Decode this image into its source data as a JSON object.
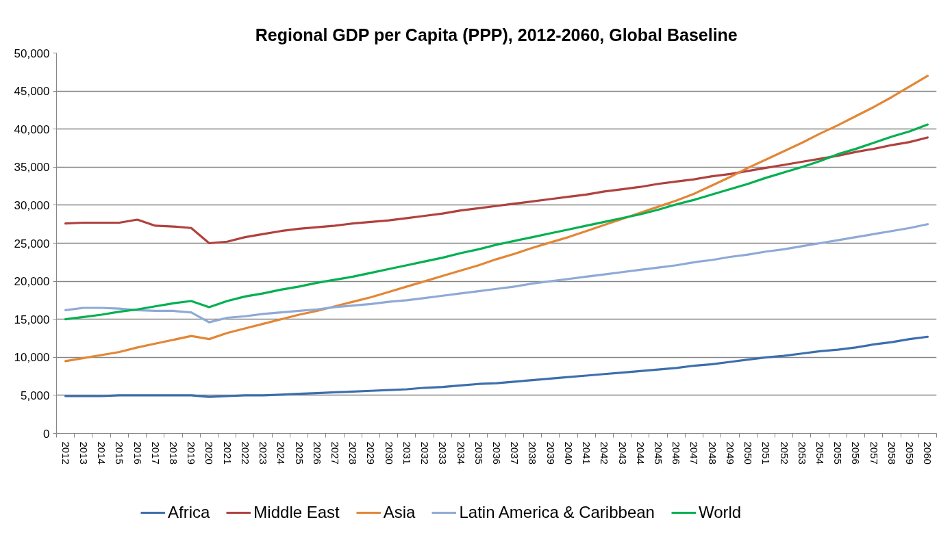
{
  "chart_data": {
    "type": "line",
    "title": "Regional GDP per Capita (PPP), 2012-2060, Global Baseline",
    "categories": [
      "2012",
      "2013",
      "2014",
      "2015",
      "2016",
      "2017",
      "2018",
      "2019",
      "2020",
      "2021",
      "2022",
      "2023",
      "2024",
      "2025",
      "2026",
      "2027",
      "2028",
      "2029",
      "2030",
      "2031",
      "2032",
      "2033",
      "2034",
      "2035",
      "2036",
      "2037",
      "2038",
      "2039",
      "2040",
      "2041",
      "2042",
      "2043",
      "2044",
      "2045",
      "2046",
      "2047",
      "2048",
      "2049",
      "2050",
      "2051",
      "2052",
      "2053",
      "2054",
      "2055",
      "2056",
      "2057",
      "2058",
      "2059",
      "2060"
    ],
    "series": [
      {
        "name": "Africa",
        "color": "#3d6eae",
        "values": [
          4900,
          4900,
          4900,
          5000,
          5000,
          5000,
          5000,
          5000,
          4800,
          4900,
          5000,
          5000,
          5100,
          5200,
          5300,
          5400,
          5500,
          5600,
          5700,
          5800,
          6000,
          6100,
          6300,
          6500,
          6600,
          6800,
          7000,
          7200,
          7400,
          7600,
          7800,
          8000,
          8200,
          8400,
          8600,
          8900,
          9100,
          9400,
          9700,
          10000,
          10200,
          10500,
          10800,
          11000,
          11300,
          11700,
          12000,
          12400,
          12700
        ]
      },
      {
        "name": "Middle East",
        "color": "#b0413e",
        "values": [
          27600,
          27700,
          27700,
          27700,
          28100,
          27300,
          27200,
          27000,
          25000,
          25200,
          25800,
          26200,
          26600,
          26900,
          27100,
          27300,
          27600,
          27800,
          28000,
          28300,
          28600,
          28900,
          29300,
          29600,
          29900,
          30200,
          30500,
          30800,
          31100,
          31400,
          31800,
          32100,
          32400,
          32800,
          33100,
          33400,
          33800,
          34100,
          34500,
          34900,
          35300,
          35700,
          36100,
          36500,
          37000,
          37400,
          37900,
          38300,
          38900
        ]
      },
      {
        "name": "Asia",
        "color": "#e38636",
        "values": [
          9500,
          9900,
          10300,
          10700,
          11300,
          11800,
          12300,
          12800,
          12400,
          13200,
          13800,
          14400,
          15000,
          15600,
          16100,
          16700,
          17300,
          17900,
          18600,
          19300,
          20000,
          20700,
          21400,
          22100,
          22900,
          23600,
          24400,
          25100,
          25800,
          26600,
          27400,
          28200,
          29000,
          29800,
          30600,
          31500,
          32600,
          33700,
          34900,
          36000,
          37100,
          38200,
          39400,
          40500,
          41700,
          42900,
          44200,
          45600,
          47000
        ]
      },
      {
        "name": "Latin America & Caribbean",
        "color": "#8eaad6",
        "values": [
          16200,
          16500,
          16500,
          16400,
          16200,
          16100,
          16100,
          15900,
          14600,
          15200,
          15400,
          15700,
          15900,
          16100,
          16300,
          16600,
          16800,
          17000,
          17300,
          17500,
          17800,
          18100,
          18400,
          18700,
          19000,
          19300,
          19700,
          20000,
          20300,
          20600,
          20900,
          21200,
          21500,
          21800,
          22100,
          22500,
          22800,
          23200,
          23500,
          23900,
          24200,
          24600,
          25000,
          25400,
          25800,
          26200,
          26600,
          27000,
          27500
        ]
      },
      {
        "name": "World",
        "color": "#00b050",
        "values": [
          15000,
          15300,
          15600,
          16000,
          16300,
          16700,
          17100,
          17400,
          16600,
          17400,
          18000,
          18400,
          18900,
          19300,
          19800,
          20200,
          20600,
          21100,
          21600,
          22100,
          22600,
          23100,
          23700,
          24200,
          24800,
          25300,
          25800,
          26300,
          26800,
          27300,
          27800,
          28300,
          28800,
          29400,
          30100,
          30700,
          31400,
          32100,
          32800,
          33600,
          34300,
          35000,
          35800,
          36700,
          37400,
          38200,
          39000,
          39700,
          40600
        ]
      }
    ],
    "ylim": [
      0,
      50000
    ],
    "yticks": [
      0,
      {
        "value": 5000,
        "label": "5,000"
      },
      {
        "value": 10000,
        "label": "10,000"
      },
      {
        "value": 15000,
        "label": "15,000"
      },
      {
        "value": 20000,
        "label": "20,000"
      },
      {
        "value": 25000,
        "label": "25,000"
      },
      {
        "value": 30000,
        "label": "30,000"
      },
      {
        "value": 35000,
        "label": "35,000"
      },
      {
        "value": 40000,
        "label": "40,000"
      },
      {
        "value": 45000,
        "label": "45,000"
      },
      {
        "value": 50000,
        "label": "50,000"
      }
    ],
    "grid": "y",
    "legend": "bottom"
  }
}
